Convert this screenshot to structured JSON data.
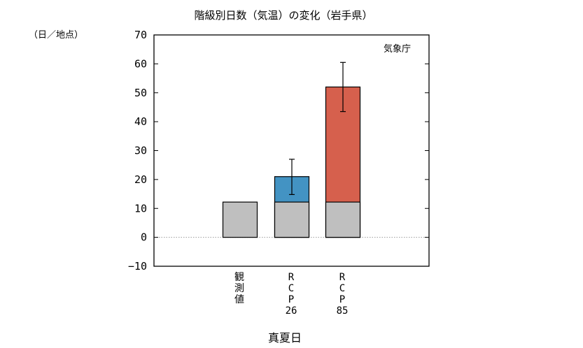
{
  "chart_data": {
    "type": "bar",
    "title": "階級別日数（気温）の変化（岩手県）",
    "ylabel": "（日／地点）",
    "xlabel": "真夏日",
    "source_label": "気象庁",
    "ylim": [
      -10,
      70
    ],
    "yticks": [
      -10,
      0,
      10,
      20,
      30,
      40,
      50,
      60,
      70
    ],
    "categories": [
      "観測値",
      "RCP26",
      "RCP85"
    ],
    "category_labels": [
      [
        "観",
        "測",
        "値"
      ],
      [
        "R",
        "C",
        "P",
        "26"
      ],
      [
        "R",
        "C",
        "P",
        "85"
      ]
    ],
    "baseline": {
      "values": [
        12.2,
        12.2,
        12.2
      ],
      "color": "#bfbfbf"
    },
    "projected": {
      "values": [
        null,
        21.0,
        52.0
      ],
      "colors": [
        null,
        "#4393c3",
        "#d6604d"
      ],
      "error_low": [
        null,
        14.8,
        43.5
      ],
      "error_high": [
        null,
        27.0,
        60.5
      ]
    },
    "zero_line": "dotted",
    "grid": false
  }
}
